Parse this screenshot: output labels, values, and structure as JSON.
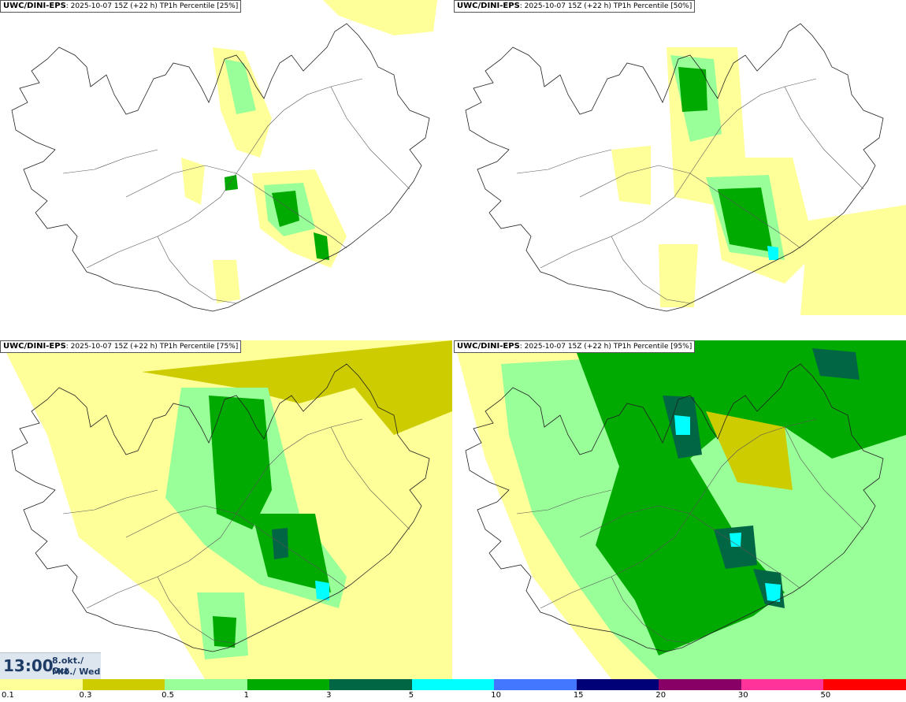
{
  "panels": [
    {
      "model": "UWC/DINI-EPS",
      "info": ": 2025-10-07 15Z (+22 h) TP1h Percentile [25%]",
      "level": 0
    },
    {
      "model": "UWC/DINI-EPS",
      "info": ": 2025-10-07 15Z (+22 h) TP1h Percentile [50%]",
      "level": 1
    },
    {
      "model": "UWC/DINI-EPS",
      "info": ": 2025-10-07 15Z (+22 h) TP1h Percentile [75%]",
      "level": 2
    },
    {
      "model": "UWC/DINI-EPS",
      "info": ": 2025-10-07 15Z (+22 h) TP1h Percentile [95%]",
      "level": 3
    }
  ],
  "time": {
    "clock": "13:00",
    "date_line1": "8.okt./ Oct",
    "date_line2": "Mið./ Wed"
  },
  "legend": {
    "colors": [
      "#ffff99",
      "#cccc00",
      "#99ff99",
      "#00aa00",
      "#006644",
      "#00ffff",
      "#4477ff",
      "#000077",
      "#880066",
      "#ff3399",
      "#ff0000"
    ],
    "ticks": [
      "0.1",
      "0.3",
      "0.5",
      "1",
      "3",
      "5",
      "10",
      "15",
      "20",
      "30",
      "50"
    ]
  }
}
